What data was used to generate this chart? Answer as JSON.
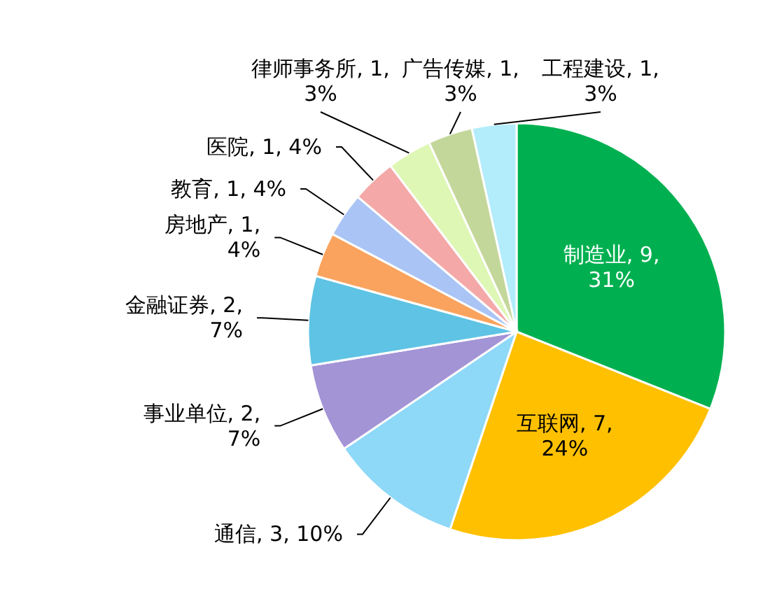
{
  "chart_data": {
    "type": "pie",
    "categories": [
      "制造业",
      "互联网",
      "通信",
      "事业单位",
      "金融证券",
      "房地产",
      "教育",
      "医院",
      "律师事务所",
      "广告传媒",
      "工程建设"
    ],
    "values": [
      9,
      7,
      3,
      2,
      2,
      1,
      1,
      1,
      1,
      1,
      1
    ],
    "value_labels": [
      "9, 31%",
      "7, 24%",
      "3, 10%",
      "2, 7%",
      "2, 7%",
      "1, 4%",
      "1, 4%",
      "1, 4%",
      "1, 3%",
      "1, 3%",
      "1, 3%"
    ],
    "colors": [
      "#00b050",
      "#ffc000",
      "#8ed8f8",
      "#a394d6",
      "#5ec3e4",
      "#f9a35e",
      "#a9c4f5",
      "#f4a8a8",
      "#def7b4",
      "#c4d79b",
      "#b3ecfa"
    ]
  }
}
